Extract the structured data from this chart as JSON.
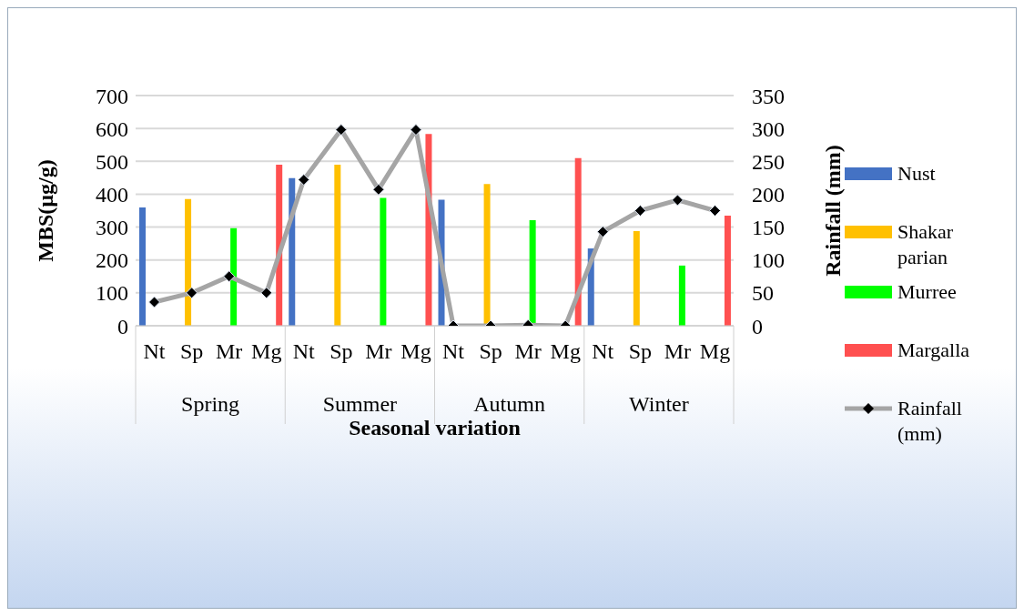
{
  "chart_data": {
    "type": "bar",
    "xlabel": "Seasonal variation",
    "ylabel": "MBS(µg/g)",
    "y2label": "Rainfall (mm)",
    "categories": [
      "Nt",
      "Sp",
      "Mr",
      "Mg",
      "Nt",
      "Sp",
      "Mr",
      "Mg",
      "Nt",
      "Sp",
      "Mr",
      "Mg",
      "Nt",
      "Sp",
      "Mr",
      "Mg"
    ],
    "annotations": [
      "Spring",
      "Summer",
      "Autumn",
      "Winter"
    ],
    "series": [
      {
        "name": "Nust",
        "color": "#4472c4",
        "values": [
          360,
          null,
          null,
          null,
          449,
          null,
          null,
          null,
          383,
          null,
          null,
          null,
          235,
          null,
          null,
          null
        ]
      },
      {
        "name": "Shakar parian",
        "color": "#ffc000",
        "values": [
          null,
          385,
          null,
          null,
          null,
          490,
          null,
          null,
          null,
          431,
          null,
          null,
          null,
          288,
          null,
          null
        ]
      },
      {
        "name": "Murree",
        "color": "#00ff00",
        "values": [
          null,
          null,
          297,
          null,
          null,
          null,
          389,
          null,
          null,
          null,
          321,
          null,
          null,
          null,
          183,
          null
        ]
      },
      {
        "name": "Margalla",
        "color": "#ff5050",
        "values": [
          null,
          null,
          null,
          490,
          null,
          null,
          null,
          583,
          null,
          null,
          null,
          510,
          null,
          null,
          null,
          335
        ]
      },
      {
        "name": "Rainfall (mm)",
        "type": "line",
        "axis": "y2",
        "color": "#a5a5a5",
        "marker": "diamond",
        "values": [
          36,
          50,
          75,
          50,
          222,
          298,
          207,
          298,
          0,
          0,
          1,
          0,
          143,
          175,
          191,
          175
        ]
      }
    ],
    "ylim": [
      0,
      700
    ],
    "yticks": [
      0,
      100,
      200,
      300,
      400,
      500,
      600,
      700
    ],
    "y2lim": [
      0,
      350
    ],
    "y2ticks": [
      0,
      50,
      100,
      150,
      200,
      250,
      300,
      350
    ],
    "grid": "y",
    "legend": "right"
  }
}
